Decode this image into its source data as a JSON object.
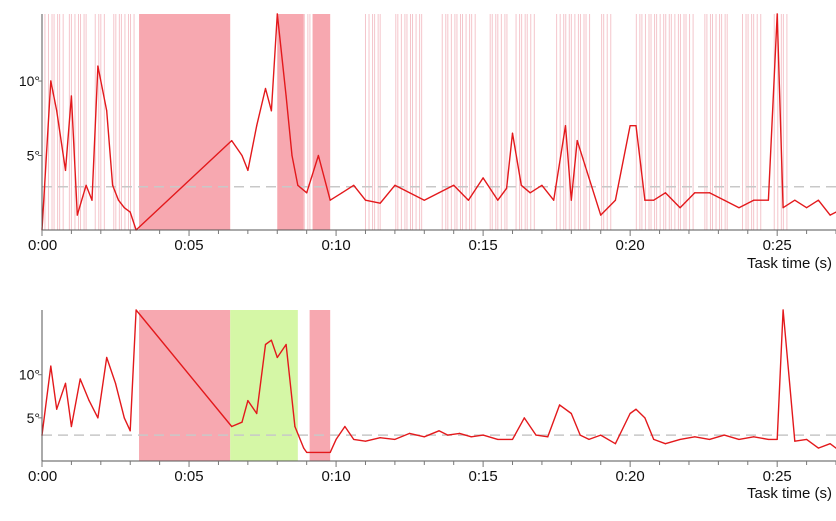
{
  "colors": {
    "line": "#e3191c",
    "interval_pink": "#f7a8b0",
    "interval_green": "#d5f7a6",
    "flicker": "#f4c5cb",
    "reference": "#c8c8c8"
  },
  "chart_data": [
    {
      "type": "line",
      "x_unit": "s",
      "xlabel": "Task time (s)",
      "xlim": [
        0,
        27
      ],
      "ylim": [
        0,
        14.5
      ],
      "xticks": [
        {
          "value": 0,
          "label": "0:00"
        },
        {
          "value": 5,
          "label": "0:05"
        },
        {
          "value": 10,
          "label": "0:10"
        },
        {
          "value": 15,
          "label": "0:15"
        },
        {
          "value": 20,
          "label": "0:20"
        },
        {
          "value": 25,
          "label": "0:25"
        }
      ],
      "yticks": [
        {
          "value": 5,
          "label": "5°"
        },
        {
          "value": 10,
          "label": "10°"
        }
      ],
      "reference_line": 2.9,
      "highlight_intervals": [
        {
          "start": 3.3,
          "end": 6.4,
          "color": "pink"
        },
        {
          "start": 8.0,
          "end": 8.9,
          "color": "pink"
        },
        {
          "start": 9.2,
          "end": 9.8,
          "color": "pink"
        }
      ],
      "flicker_intervals": [
        [
          0.1,
          0.8
        ],
        [
          0.9,
          1.6
        ],
        [
          1.8,
          2.2
        ],
        [
          2.4,
          3.2
        ],
        [
          8.9,
          9.7
        ],
        [
          11.0,
          11.6
        ],
        [
          12.0,
          13.0
        ],
        [
          13.6,
          14.8
        ],
        [
          15.2,
          15.9
        ],
        [
          16.1,
          16.8
        ],
        [
          17.5,
          18.7
        ],
        [
          19.0,
          19.4
        ],
        [
          20.2,
          22.2
        ],
        [
          22.5,
          23.4
        ],
        [
          23.8,
          24.5
        ],
        [
          24.9,
          25.4
        ]
      ],
      "series": [
        {
          "x": [
            0,
            0.3,
            0.5,
            0.8,
            1.0,
            1.2,
            1.5,
            1.7,
            1.9,
            2.2,
            2.4,
            2.6,
            2.8,
            3.0,
            3.2,
            6.45,
            6.8,
            7.0,
            7.3,
            7.6,
            7.8,
            8.0,
            8.3,
            8.5,
            8.7,
            9.0,
            9.4,
            9.8,
            10.2,
            10.6,
            11.0,
            11.5,
            12.0,
            12.5,
            13.0,
            13.5,
            14.0,
            14.5,
            15.0,
            15.5,
            15.8,
            16.0,
            16.3,
            16.6,
            17.0,
            17.4,
            17.8,
            18.0,
            18.2,
            18.6,
            19.0,
            19.5,
            20.0,
            20.2,
            20.5,
            20.8,
            21.2,
            21.7,
            22.2,
            22.7,
            23.2,
            23.7,
            24.2,
            24.7,
            25.0,
            25.2,
            25.6,
            26.0,
            26.4,
            26.8,
            27.0
          ],
          "y": [
            0,
            10,
            8,
            4,
            9,
            1,
            3,
            2,
            11,
            8,
            3,
            2,
            1.5,
            1.2,
            0,
            6,
            5,
            4,
            7,
            9.5,
            8,
            14.5,
            9,
            5,
            3,
            2.5,
            5,
            2,
            2.5,
            3,
            2,
            1.8,
            3,
            2.5,
            2,
            2.5,
            3,
            2,
            3.5,
            2,
            2.8,
            6.5,
            3,
            2.5,
            3,
            2,
            7,
            2,
            6,
            3.5,
            1,
            2,
            7,
            7,
            2,
            2,
            2.5,
            1.5,
            2.5,
            2.5,
            2,
            1.5,
            2,
            2,
            14.5,
            1.5,
            2,
            1.5,
            2,
            1,
            1.2
          ]
        }
      ]
    },
    {
      "type": "line",
      "x_unit": "s",
      "xlabel": "Task time (s)",
      "xlim": [
        0,
        27
      ],
      "ylim": [
        0,
        17.5
      ],
      "xticks": [
        {
          "value": 0,
          "label": "0:00"
        },
        {
          "value": 5,
          "label": "0:05"
        },
        {
          "value": 10,
          "label": "0:10"
        },
        {
          "value": 15,
          "label": "0:15"
        },
        {
          "value": 20,
          "label": "0:20"
        },
        {
          "value": 25,
          "label": "0:25"
        }
      ],
      "yticks": [
        {
          "value": 5,
          "label": "5°"
        },
        {
          "value": 10,
          "label": "10°"
        }
      ],
      "reference_line": 3.0,
      "highlight_intervals": [
        {
          "start": 3.3,
          "end": 6.4,
          "color": "pink"
        },
        {
          "start": 6.4,
          "end": 8.7,
          "color": "green"
        },
        {
          "start": 9.1,
          "end": 9.8,
          "color": "pink"
        }
      ],
      "flicker_intervals": [],
      "series": [
        {
          "x": [
            0,
            0.3,
            0.5,
            0.8,
            1.0,
            1.3,
            1.6,
            1.9,
            2.2,
            2.5,
            2.8,
            3.0,
            3.2,
            6.45,
            6.8,
            7.0,
            7.3,
            7.6,
            7.8,
            8.0,
            8.3,
            8.6,
            8.9,
            9.0,
            9.8,
            10.0,
            10.3,
            10.6,
            11.0,
            11.5,
            12.0,
            12.5,
            13.0,
            13.5,
            13.8,
            14.2,
            14.6,
            15.0,
            15.5,
            16.0,
            16.4,
            16.8,
            17.2,
            17.6,
            18.0,
            18.3,
            18.6,
            19.0,
            19.5,
            20.0,
            20.2,
            20.5,
            20.8,
            21.2,
            21.7,
            22.2,
            22.7,
            23.2,
            23.7,
            24.2,
            24.7,
            25.0,
            25.2,
            25.6,
            26.0,
            26.4,
            26.8,
            27.0
          ],
          "y": [
            3,
            11,
            6,
            9,
            4,
            9.5,
            7,
            5,
            12,
            9,
            5,
            3.5,
            17.5,
            4,
            4.5,
            7,
            5.5,
            13.5,
            14,
            12,
            13.5,
            4,
            1.5,
            1,
            1,
            2.5,
            4,
            2.5,
            2.3,
            2.7,
            2.5,
            3.2,
            2.8,
            3.5,
            3,
            3.2,
            2.8,
            3,
            2.5,
            2.5,
            5,
            3,
            2.8,
            6.5,
            5.5,
            3,
            2.5,
            3,
            2,
            5.5,
            6,
            5,
            2.5,
            2,
            2.5,
            2.8,
            2.5,
            3,
            2.5,
            2.8,
            2.5,
            2.5,
            17.5,
            2.3,
            2.5,
            1.5,
            2,
            1.5
          ]
        }
      ]
    }
  ]
}
